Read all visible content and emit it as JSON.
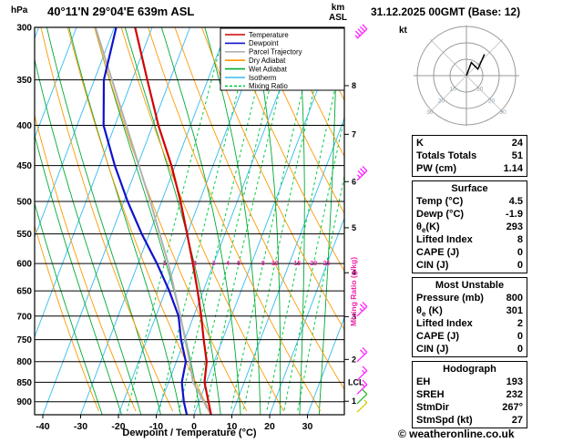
{
  "header": {
    "pressure_unit": "hPa",
    "station": "40°11'N 29°04'E 639m ASL",
    "alt_unit_line1": "km",
    "alt_unit_line2": "ASL",
    "datetime": "31.12.2025 00GMT (Base: 12)"
  },
  "footer": {
    "credit": "© weatheronline.co.uk"
  },
  "legend": {
    "items": [
      {
        "key": "temperature",
        "label": "Temperature"
      },
      {
        "key": "dewpoint",
        "label": "Dewpoint"
      },
      {
        "key": "parcel",
        "label": "Parcel Trajectory"
      },
      {
        "key": "dry_adiabat",
        "label": "Dry Adiabat"
      },
      {
        "key": "wet_adiabat",
        "label": "Wet Adiabat"
      },
      {
        "key": "isotherm",
        "label": "Isotherm"
      },
      {
        "key": "mixing_ratio",
        "label": "Mixing Ratio"
      }
    ]
  },
  "chart_data": {
    "type": "line",
    "variant": "skew-t-log-p",
    "xlabel": "Dewpoint / Temperature (°C)",
    "pressure_axis": {
      "unit": "hPa",
      "top": 300,
      "bottom": 935,
      "ticks": [
        300,
        350,
        400,
        450,
        500,
        550,
        600,
        650,
        700,
        750,
        800,
        850,
        900
      ]
    },
    "temp_axis": {
      "unit": "°C",
      "ticks": [
        -40,
        -30,
        -20,
        -10,
        0,
        10,
        20,
        30
      ]
    },
    "altitude_axis": {
      "unit": "km ASL",
      "ticks_km": [
        1,
        2,
        3,
        4,
        5,
        6,
        7,
        8
      ]
    },
    "mixing_ratios_g_kg": [
      1,
      2,
      3,
      4,
      5,
      8,
      10,
      15,
      20,
      25
    ],
    "mixing_label_pressure_hpa": 600,
    "mixing_axis_label": "Mixing Ratio (g/kg)",
    "lcl": {
      "label": "LCL",
      "pressure_hpa": 850
    },
    "series": [
      {
        "key": "temperature",
        "name": "Temperature",
        "points_p_t": [
          [
            935,
            4.5
          ],
          [
            900,
            2.5
          ],
          [
            850,
            -0.5
          ],
          [
            800,
            -2
          ],
          [
            750,
            -5
          ],
          [
            700,
            -8
          ],
          [
            650,
            -11.5
          ],
          [
            600,
            -15.5
          ],
          [
            550,
            -20
          ],
          [
            500,
            -25
          ],
          [
            450,
            -31
          ],
          [
            400,
            -38.5
          ],
          [
            350,
            -46
          ],
          [
            300,
            -54.5
          ]
        ]
      },
      {
        "key": "dewpoint",
        "name": "Dewpoint",
        "points_p_t": [
          [
            935,
            -1.9
          ],
          [
            900,
            -4
          ],
          [
            850,
            -6.5
          ],
          [
            800,
            -7.5
          ],
          [
            750,
            -11
          ],
          [
            700,
            -14
          ],
          [
            650,
            -19
          ],
          [
            600,
            -25
          ],
          [
            550,
            -32
          ],
          [
            500,
            -39
          ],
          [
            450,
            -46
          ],
          [
            400,
            -53
          ],
          [
            350,
            -57.5
          ],
          [
            300,
            -59.5
          ]
        ]
      },
      {
        "key": "parcel",
        "name": "Parcel Trajectory",
        "points_p_t": [
          [
            935,
            4.5
          ],
          [
            850,
            -3.5
          ],
          [
            800,
            -6.5
          ],
          [
            700,
            -13.5
          ],
          [
            600,
            -22
          ],
          [
            500,
            -33
          ],
          [
            400,
            -47
          ],
          [
            300,
            -65
          ]
        ]
      }
    ],
    "wind_barbs": [
      {
        "pressure": 310,
        "speed_kt": 45,
        "color_key": "barb_upper"
      },
      {
        "pressure": 470,
        "speed_kt": 35,
        "color_key": "barb_upper"
      },
      {
        "pressure": 700,
        "speed_kt": 25,
        "color_key": "barb_upper"
      },
      {
        "pressure": 800,
        "speed_kt": 20,
        "color_key": "barb_upper"
      },
      {
        "pressure": 845,
        "speed_kt": 15,
        "color_key": "barb_upper"
      },
      {
        "pressure": 880,
        "speed_kt": 15,
        "color_key": "barb_upper"
      },
      {
        "pressure": 905,
        "speed_kt": 10,
        "color_key": "barb_mid"
      },
      {
        "pressure": 928,
        "speed_kt": 5,
        "color_key": "barb_low"
      }
    ],
    "colors": {
      "temperature": "#d40000",
      "dewpoint": "#1111cc",
      "parcel": "#b0b0b0",
      "dry_adiabat": "#ff9900",
      "wet_adiabat": "#00aa33",
      "isotherm": "#33bbee",
      "mixing_ratio": "#00cc44",
      "mixing_label": "#ee22aa",
      "barb_upper": "#ff22ff",
      "barb_mid": "#22bb22",
      "barb_low": "#cccc00"
    }
  },
  "hodograph": {
    "unit": "kt",
    "ring_radii_kt": [
      10,
      20,
      30
    ],
    "ring_labels": [
      "10",
      "20",
      "30"
    ],
    "trace_uv_kt": [
      [
        0,
        0
      ],
      [
        3,
        8
      ],
      [
        7,
        4
      ],
      [
        11,
        13
      ]
    ]
  },
  "stats": {
    "boxes": [
      {
        "rows": [
          {
            "label": "K",
            "value": "24"
          },
          {
            "label": "Totals Totals",
            "value": "51"
          },
          {
            "label": "PW (cm)",
            "value": "1.14"
          }
        ]
      },
      {
        "header": "Surface",
        "rows": [
          {
            "label": "Temp (°C)",
            "value": "4.5"
          },
          {
            "label": "Dewp (°C)",
            "value": "-1.9"
          },
          {
            "label": "θ",
            "label_sub": "e",
            "label_rest": "(K)",
            "value": "293"
          },
          {
            "label": "Lifted Index",
            "value": "8"
          },
          {
            "label": "CAPE (J)",
            "value": "0"
          },
          {
            "label": "CIN (J)",
            "value": "0"
          }
        ]
      },
      {
        "header": "Most Unstable",
        "rows": [
          {
            "label": "Pressure (mb)",
            "value": "800"
          },
          {
            "label": "θ",
            "label_sub": "e",
            "label_rest": " (K)",
            "value": "301"
          },
          {
            "label": "Lifted Index",
            "value": "2"
          },
          {
            "label": "CAPE (J)",
            "value": "0"
          },
          {
            "label": "CIN (J)",
            "value": "0"
          }
        ]
      },
      {
        "header": "Hodograph",
        "rows": [
          {
            "label": "EH",
            "value": "193"
          },
          {
            "label": "SREH",
            "value": "232"
          },
          {
            "label": "StmDir",
            "value": "267°"
          },
          {
            "label": "StmSpd (kt)",
            "value": "27"
          }
        ]
      }
    ]
  }
}
